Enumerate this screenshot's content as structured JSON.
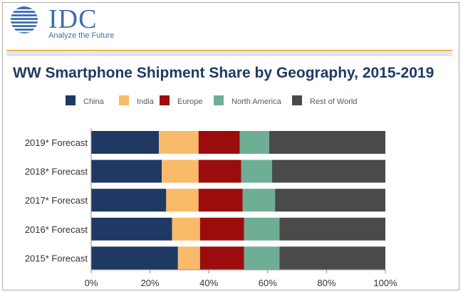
{
  "brand": {
    "wordmark": "IDC",
    "tagline": "Analyze the Future",
    "colors": {
      "logo_blue": "#3d6fae",
      "rule_orange": "#f0b043",
      "rule_blue": "#dbe6f1"
    }
  },
  "chart_data": {
    "type": "bar",
    "orientation": "horizontal",
    "stacked": true,
    "percent_stacked": true,
    "title": "WW Smartphone Shipment Share by Geography, 2015-2019",
    "categories": [
      "2019* Forecast",
      "2018* Forecast",
      "2017* Forecast",
      "2016* Forecast",
      "2015* Forecast"
    ],
    "series": [
      {
        "name": "China",
        "color": "#1f3864",
        "values": [
          23,
          24,
          25.5,
          27.5,
          29.5
        ]
      },
      {
        "name": "India",
        "color": "#f9bb6a",
        "values": [
          13.5,
          12.5,
          11,
          9.5,
          7.5
        ]
      },
      {
        "name": "Europe",
        "color": "#9b0d0d",
        "values": [
          14,
          14.5,
          15,
          15,
          15
        ]
      },
      {
        "name": "North America",
        "color": "#6dae95",
        "values": [
          10,
          10.5,
          11,
          12,
          12
        ]
      },
      {
        "name": "Rest of World",
        "color": "#4a4a4a",
        "values": [
          39.5,
          38.5,
          37.5,
          36,
          36
        ]
      }
    ],
    "xlim": [
      0,
      100
    ],
    "x_ticks": [
      "0%",
      "20%",
      "40%",
      "60%",
      "80%",
      "100%"
    ],
    "grid": false,
    "legend_position": "top"
  }
}
